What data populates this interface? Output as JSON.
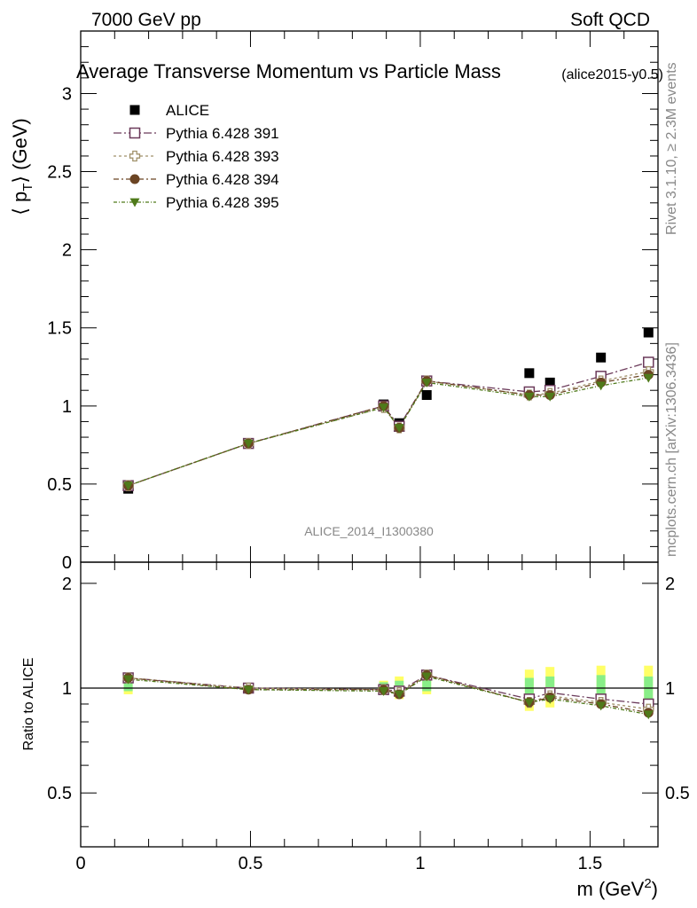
{
  "header": {
    "left": "7000 GeV pp",
    "right": "Soft QCD"
  },
  "plot_title": "Average Transverse Momentum vs Particle Mass",
  "plot_subtitle": "(alice2015-y0.5)",
  "side_labels": {
    "rivet": "Rivet 3.1.10, ≥ 2.3M events",
    "mcplots": "mcplots.cern.ch [arXiv:1306.3436]"
  },
  "watermark": "ALICE_2014_I1300380",
  "colors": {
    "ALICE": "#000000",
    "Pythia 6.428 391": "#6b3a5a",
    "Pythia 6.428 393": "#a0916a",
    "Pythia 6.428 394": "#6b4423",
    "Pythia 6.428 395": "#4f7a1a",
    "band_outer": "#ffff66",
    "band_inner": "#88ee88"
  },
  "chart_data": [
    {
      "type": "line",
      "panel": "main",
      "xlabel": "",
      "ylabel": "⟨ p_T ⟩ (GeV)",
      "ylabel_parts": {
        "left": "⟨ p",
        "sub": "T",
        "right": "⟩ (GeV)"
      },
      "xlim": [
        0,
        1.7
      ],
      "ylim": [
        0,
        3.4
      ],
      "yticks": [
        "0",
        "0.5",
        "1",
        "1.5",
        "2",
        "2.5",
        "3"
      ],
      "legend_position": "top-left",
      "x": [
        0.14,
        0.494,
        0.892,
        0.938,
        1.019,
        1.321,
        1.382,
        1.532,
        1.672
      ],
      "series": [
        {
          "name": "ALICE",
          "marker": "filled-square",
          "values": [
            0.47,
            0.76,
            1.01,
            0.89,
            1.07,
            1.21,
            1.15,
            1.31,
            1.47
          ]
        },
        {
          "name": "Pythia 6.428 391",
          "marker": "open-square",
          "values": [
            0.49,
            0.76,
            1.0,
            0.87,
            1.16,
            1.09,
            1.1,
            1.19,
            1.28
          ]
        },
        {
          "name": "Pythia 6.428 393",
          "marker": "open-cross",
          "values": [
            0.49,
            0.76,
            0.99,
            0.86,
            1.16,
            1.07,
            1.08,
            1.16,
            1.22
          ]
        },
        {
          "name": "Pythia 6.428 394",
          "marker": "filled-circle",
          "values": [
            0.49,
            0.76,
            1.0,
            0.86,
            1.16,
            1.07,
            1.07,
            1.15,
            1.2
          ]
        },
        {
          "name": "Pythia 6.428 395",
          "marker": "filled-triangle-down",
          "values": [
            0.49,
            0.76,
            0.99,
            0.86,
            1.15,
            1.06,
            1.06,
            1.13,
            1.18
          ]
        }
      ]
    },
    {
      "type": "line",
      "panel": "ratio",
      "xlabel": "m (GeV²)",
      "xlabel_parts": {
        "main": "m (GeV",
        "sup": "2",
        "end": ")"
      },
      "ylabel": "Ratio to ALICE",
      "xlim": [
        0,
        1.7
      ],
      "ylim": [
        0.35,
        2.3
      ],
      "yscale": "log",
      "xticks": [
        "0",
        "0.5",
        "1",
        "1.5"
      ],
      "yticks": [
        "0.5",
        "1",
        "2"
      ],
      "x": [
        0.14,
        0.494,
        0.892,
        0.938,
        1.019,
        1.321,
        1.382,
        1.532,
        1.672
      ],
      "band_outer": [
        [
          0.96,
          1.06
        ],
        [
          0.97,
          1.03
        ],
        [
          0.96,
          1.05
        ],
        [
          0.93,
          1.08
        ],
        [
          0.96,
          1.12
        ],
        [
          0.86,
          1.13
        ],
        [
          0.88,
          1.15
        ],
        [
          0.89,
          1.16
        ],
        [
          0.86,
          1.16
        ]
      ],
      "band_inner": [
        [
          0.98,
          1.04
        ],
        [
          0.98,
          1.02
        ],
        [
          0.97,
          1.04
        ],
        [
          0.95,
          1.05
        ],
        [
          0.98,
          1.09
        ],
        [
          0.92,
          1.07
        ],
        [
          0.93,
          1.08
        ],
        [
          0.95,
          1.09
        ],
        [
          0.92,
          1.08
        ]
      ],
      "series": [
        {
          "name": "Pythia 6.428 391",
          "marker": "open-square",
          "values": [
            1.07,
            1.0,
            0.99,
            0.98,
            1.09,
            0.93,
            0.97,
            0.93,
            0.9
          ]
        },
        {
          "name": "Pythia 6.428 393",
          "marker": "open-cross",
          "values": [
            1.07,
            1.0,
            0.99,
            0.97,
            1.09,
            0.91,
            0.95,
            0.91,
            0.87
          ]
        },
        {
          "name": "Pythia 6.428 394",
          "marker": "filled-circle",
          "values": [
            1.07,
            0.99,
            0.99,
            0.96,
            1.09,
            0.91,
            0.94,
            0.9,
            0.85
          ]
        },
        {
          "name": "Pythia 6.428 395",
          "marker": "filled-triangle-down",
          "values": [
            1.06,
            0.99,
            0.98,
            0.96,
            1.08,
            0.91,
            0.93,
            0.89,
            0.84
          ]
        }
      ]
    }
  ]
}
